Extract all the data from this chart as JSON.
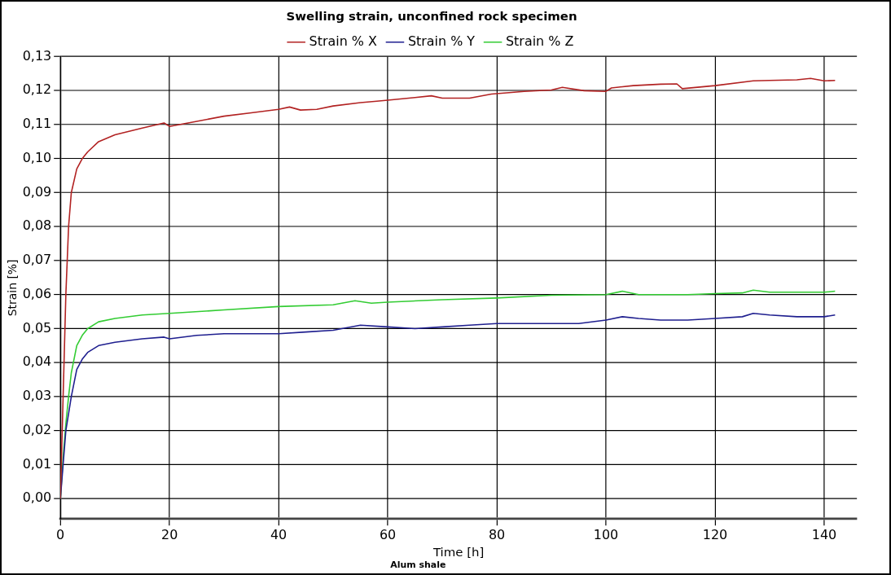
{
  "chart_data": {
    "type": "line",
    "title": "Swelling strain, unconfined rock specimen",
    "xlabel": "Time [h]",
    "ylabel": "Strain [%]",
    "annotations": [
      "Alum shale"
    ],
    "xlim": [
      0,
      146
    ],
    "xticks": [
      0,
      20,
      40,
      60,
      80,
      100,
      120,
      140
    ],
    "ylim": [
      -0.006,
      0.13
    ],
    "yticks": [
      {
        "value": 0,
        "label": "0,00"
      },
      {
        "value": 0.01,
        "label": "0,01"
      },
      {
        "value": 0.02,
        "label": "0,02"
      },
      {
        "value": 0.03,
        "label": "0,03"
      },
      {
        "value": 0.04,
        "label": "0,04"
      },
      {
        "value": 0.05,
        "label": "0,05"
      },
      {
        "value": 0.06,
        "label": "0,06"
      },
      {
        "value": 0.07,
        "label": "0,07"
      },
      {
        "value": 0.08,
        "label": "0,08"
      },
      {
        "value": 0.09,
        "label": "0,09"
      },
      {
        "value": 0.1,
        "label": "0,10"
      },
      {
        "value": 0.11,
        "label": "0,11"
      },
      {
        "value": 0.12,
        "label": "0,12"
      },
      {
        "value": 0.13,
        "label": "0,13"
      }
    ],
    "grid": true,
    "legend": "top",
    "marker": "none",
    "line_style": "solid",
    "series": [
      {
        "name": "Strain % X",
        "color": "#b22222",
        "x": [
          0,
          0.5,
          1,
          1.5,
          2,
          3,
          4,
          5,
          7,
          10,
          15,
          19,
          20,
          25,
          30,
          35,
          40,
          42,
          44,
          47,
          50,
          55,
          58,
          60,
          65,
          68,
          70,
          75,
          79,
          85,
          90,
          92,
          96,
          100,
          101,
          105,
          110,
          113,
          114,
          120,
          127,
          130,
          135,
          137.5,
          140,
          142
        ],
        "values": [
          0,
          0.03,
          0.06,
          0.08,
          0.09,
          0.097,
          0.1,
          0.102,
          0.105,
          0.107,
          0.109,
          0.1105,
          0.1095,
          0.111,
          0.1125,
          0.1135,
          0.1145,
          0.1152,
          0.1143,
          0.1145,
          0.1155,
          0.1165,
          0.1169,
          0.1172,
          0.118,
          0.1185,
          0.1178,
          0.1178,
          0.119,
          0.1198,
          0.1202,
          0.121,
          0.12,
          0.1198,
          0.1208,
          0.1215,
          0.1219,
          0.122,
          0.1206,
          0.1215,
          0.1229,
          0.123,
          0.1232,
          0.1236,
          0.1229,
          0.123
        ]
      },
      {
        "name": "Strain % Y",
        "color": "#1f1f8f",
        "x": [
          0,
          0.5,
          1,
          1.5,
          2,
          3,
          4,
          5,
          7,
          10,
          15,
          19,
          20,
          25,
          30,
          40,
          45,
          50,
          55,
          60,
          65,
          70,
          75,
          80,
          90,
          95,
          100,
          103,
          106,
          110,
          115,
          120,
          125,
          127,
          130,
          135,
          140,
          142
        ],
        "values": [
          0,
          0.01,
          0.02,
          0.025,
          0.03,
          0.038,
          0.041,
          0.043,
          0.045,
          0.046,
          0.047,
          0.0475,
          0.047,
          0.048,
          0.0485,
          0.0485,
          0.049,
          0.0495,
          0.051,
          0.0505,
          0.05,
          0.0505,
          0.051,
          0.0515,
          0.0515,
          0.0515,
          0.0525,
          0.0535,
          0.053,
          0.0525,
          0.0525,
          0.053,
          0.0535,
          0.0545,
          0.054,
          0.0535,
          0.0535,
          0.054
        ]
      },
      {
        "name": "Strain % Z",
        "color": "#33cc33",
        "x": [
          0,
          0.5,
          1,
          1.5,
          2,
          3,
          4,
          5,
          7,
          10,
          15,
          20,
          30,
          40,
          50,
          54,
          57,
          60,
          70,
          80,
          90,
          100,
          103,
          106,
          115,
          120,
          125,
          127,
          130,
          140,
          142
        ],
        "values": [
          0,
          0.012,
          0.022,
          0.03,
          0.037,
          0.045,
          0.048,
          0.05,
          0.052,
          0.053,
          0.054,
          0.0545,
          0.0555,
          0.0565,
          0.057,
          0.0582,
          0.0575,
          0.0578,
          0.0585,
          0.059,
          0.0598,
          0.06,
          0.061,
          0.06,
          0.06,
          0.0603,
          0.0605,
          0.0613,
          0.0607,
          0.0607,
          0.061
        ]
      }
    ]
  }
}
